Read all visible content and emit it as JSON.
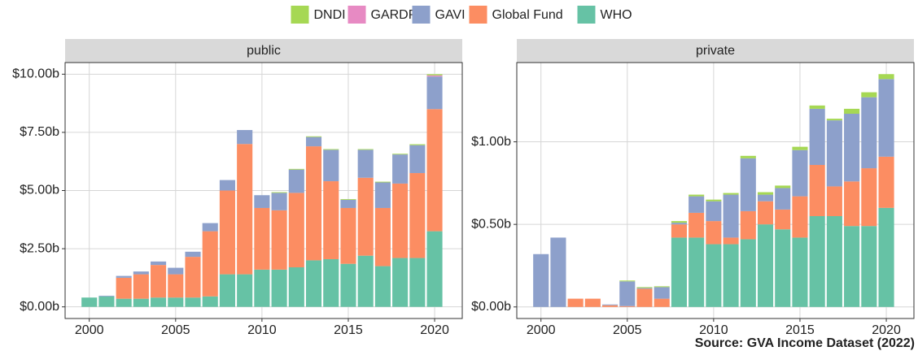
{
  "legend_position": "top",
  "source": "Source: GVA Income Dataset (2022)",
  "chart_data": [
    {
      "type": "stacked_bar",
      "title": "public",
      "x": [
        2000,
        2001,
        2002,
        2003,
        2004,
        2005,
        2006,
        2007,
        2008,
        2009,
        2010,
        2011,
        2012,
        2013,
        2014,
        2015,
        2016,
        2017,
        2018,
        2019,
        2020
      ],
      "xlim": [
        1998.6,
        2021.6
      ],
      "xticks": [
        2000,
        2005,
        2010,
        2015,
        2020
      ],
      "ylim": [
        -0.5,
        10.5
      ],
      "yticks": [
        {
          "value": 0,
          "label": "$0.00b"
        },
        {
          "value": 2.5,
          "label": "$2.50b"
        },
        {
          "value": 5,
          "label": "$5.00b"
        },
        {
          "value": 7.5,
          "label": "$7.50b"
        },
        {
          "value": 10,
          "label": "$10.00b"
        }
      ],
      "grid": true,
      "series": [
        {
          "name": "DNDI",
          "color": "#a6d854",
          "values": [
            0,
            0,
            0,
            0,
            0,
            0,
            0,
            0,
            0,
            0,
            0,
            0.03,
            0.03,
            0.03,
            0.03,
            0.03,
            0.03,
            0.03,
            0.03,
            0.04,
            0.05
          ]
        },
        {
          "name": "GARDP",
          "color": "#e78ac3",
          "values": [
            0,
            0,
            0,
            0,
            0,
            0,
            0,
            0,
            0,
            0,
            0,
            0,
            0,
            0,
            0,
            0,
            0,
            0,
            0,
            0,
            0.05
          ]
        },
        {
          "name": "GAVI",
          "color": "#8da0cb",
          "values": [
            0,
            0.03,
            0.08,
            0.12,
            0.15,
            0.28,
            0.22,
            0.35,
            0.45,
            0.6,
            0.55,
            0.75,
            1.0,
            0.4,
            1.35,
            0.35,
            1.2,
            1.1,
            1.25,
            1.2,
            1.4
          ]
        },
        {
          "name": "Global Fund",
          "color": "#fc8d62",
          "values": [
            0,
            0,
            0.9,
            1.05,
            1.4,
            1.0,
            1.75,
            2.8,
            3.6,
            5.6,
            2.65,
            2.55,
            3.2,
            4.9,
            3.35,
            2.4,
            3.35,
            2.5,
            3.2,
            3.65,
            5.25
          ]
        },
        {
          "name": "WHO",
          "color": "#66c2a5",
          "values": [
            0.4,
            0.45,
            0.35,
            0.35,
            0.4,
            0.4,
            0.4,
            0.45,
            1.4,
            1.4,
            1.6,
            1.6,
            1.7,
            2.0,
            2.05,
            1.85,
            2.2,
            1.75,
            2.1,
            2.1,
            3.25
          ]
        }
      ]
    },
    {
      "type": "stacked_bar",
      "title": "private",
      "x": [
        2000,
        2001,
        2002,
        2003,
        2004,
        2005,
        2006,
        2007,
        2008,
        2009,
        2010,
        2011,
        2012,
        2013,
        2014,
        2015,
        2016,
        2017,
        2018,
        2019,
        2020
      ],
      "xlim": [
        1998.6,
        2021.6
      ],
      "xticks": [
        2000,
        2005,
        2010,
        2015,
        2020
      ],
      "ylim": [
        -0.07,
        1.48
      ],
      "yticks": [
        {
          "value": 0,
          "label": "$0.00b"
        },
        {
          "value": 0.5,
          "label": "$0.50b"
        },
        {
          "value": 1,
          "label": "$1.00b"
        }
      ],
      "grid": true,
      "series": [
        {
          "name": "DNDI",
          "color": "#a6d854",
          "values": [
            0,
            0,
            0,
            0,
            0,
            0.005,
            0.005,
            0.005,
            0.01,
            0.01,
            0.01,
            0.01,
            0.015,
            0.015,
            0.015,
            0.02,
            0.02,
            0.01,
            0.03,
            0.03,
            0.03
          ]
        },
        {
          "name": "GARDP",
          "color": "#e78ac3",
          "values": [
            0,
            0,
            0,
            0,
            0,
            0,
            0,
            0,
            0,
            0,
            0,
            0,
            0,
            0,
            0,
            0,
            0,
            0,
            0,
            0,
            0
          ]
        },
        {
          "name": "GAVI",
          "color": "#8da0cb",
          "values": [
            0.32,
            0.42,
            0,
            0,
            0.005,
            0.15,
            0.005,
            0.07,
            0.01,
            0.1,
            0.12,
            0.26,
            0.32,
            0.04,
            0.13,
            0.28,
            0.34,
            0.4,
            0.41,
            0.43,
            0.47
          ]
        },
        {
          "name": "Global Fund",
          "color": "#fc8d62",
          "values": [
            0,
            0,
            0.05,
            0.05,
            0.01,
            0.005,
            0.11,
            0.05,
            0.08,
            0.15,
            0.14,
            0.04,
            0.17,
            0.14,
            0.12,
            0.25,
            0.31,
            0.18,
            0.27,
            0.35,
            0.31
          ]
        },
        {
          "name": "WHO",
          "color": "#66c2a5",
          "values": [
            0,
            0,
            0,
            0,
            0,
            0,
            0,
            0,
            0.42,
            0.42,
            0.38,
            0.38,
            0.41,
            0.5,
            0.47,
            0.42,
            0.55,
            0.55,
            0.49,
            0.49,
            0.6
          ]
        }
      ]
    }
  ]
}
